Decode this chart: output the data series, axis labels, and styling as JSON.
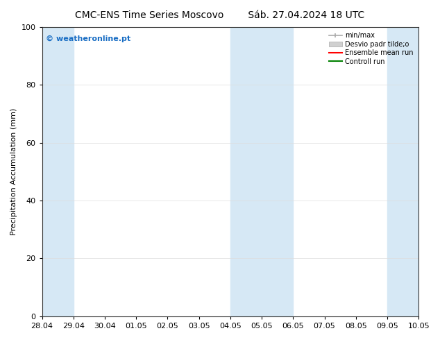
{
  "title_left": "CMC-ENS Time Series Moscovo",
  "title_right": "Sáb. 27.04.2024 18 UTC",
  "ylabel": "Precipitation Accumulation (mm)",
  "ylim": [
    0,
    100
  ],
  "yticks": [
    0,
    20,
    40,
    60,
    80,
    100
  ],
  "x_labels": [
    "28.04",
    "29.04",
    "30.04",
    "01.05",
    "02.05",
    "03.05",
    "04.05",
    "05.05",
    "06.05",
    "07.05",
    "08.05",
    "09.05",
    "10.05"
  ],
  "x_positions": [
    0,
    1,
    2,
    3,
    4,
    5,
    6,
    7,
    8,
    9,
    10,
    11,
    12
  ],
  "xlim": [
    0,
    12
  ],
  "shaded_bands": [
    {
      "x_start": 0,
      "x_end": 1,
      "color": "#d6e8f5"
    },
    {
      "x_start": 6,
      "x_end": 8,
      "color": "#d6e8f5"
    },
    {
      "x_start": 11,
      "x_end": 12,
      "color": "#d6e8f5"
    }
  ],
  "legend_labels": [
    "min/max",
    "Desvio padr tilde;o",
    "Ensemble mean run",
    "Controll run"
  ],
  "legend_minmax_color": "#aaaaaa",
  "legend_std_color": "#cccccc",
  "legend_ens_color": "#ff0000",
  "legend_ctrl_color": "#008000",
  "watermark_text": "© weatheronline.pt",
  "watermark_color": "#1a6ec4",
  "bg_color": "#ffffff",
  "plot_bg_color": "#ffffff",
  "title_fontsize": 10,
  "axis_label_fontsize": 8,
  "tick_fontsize": 8,
  "legend_fontsize": 7,
  "watermark_fontsize": 8
}
